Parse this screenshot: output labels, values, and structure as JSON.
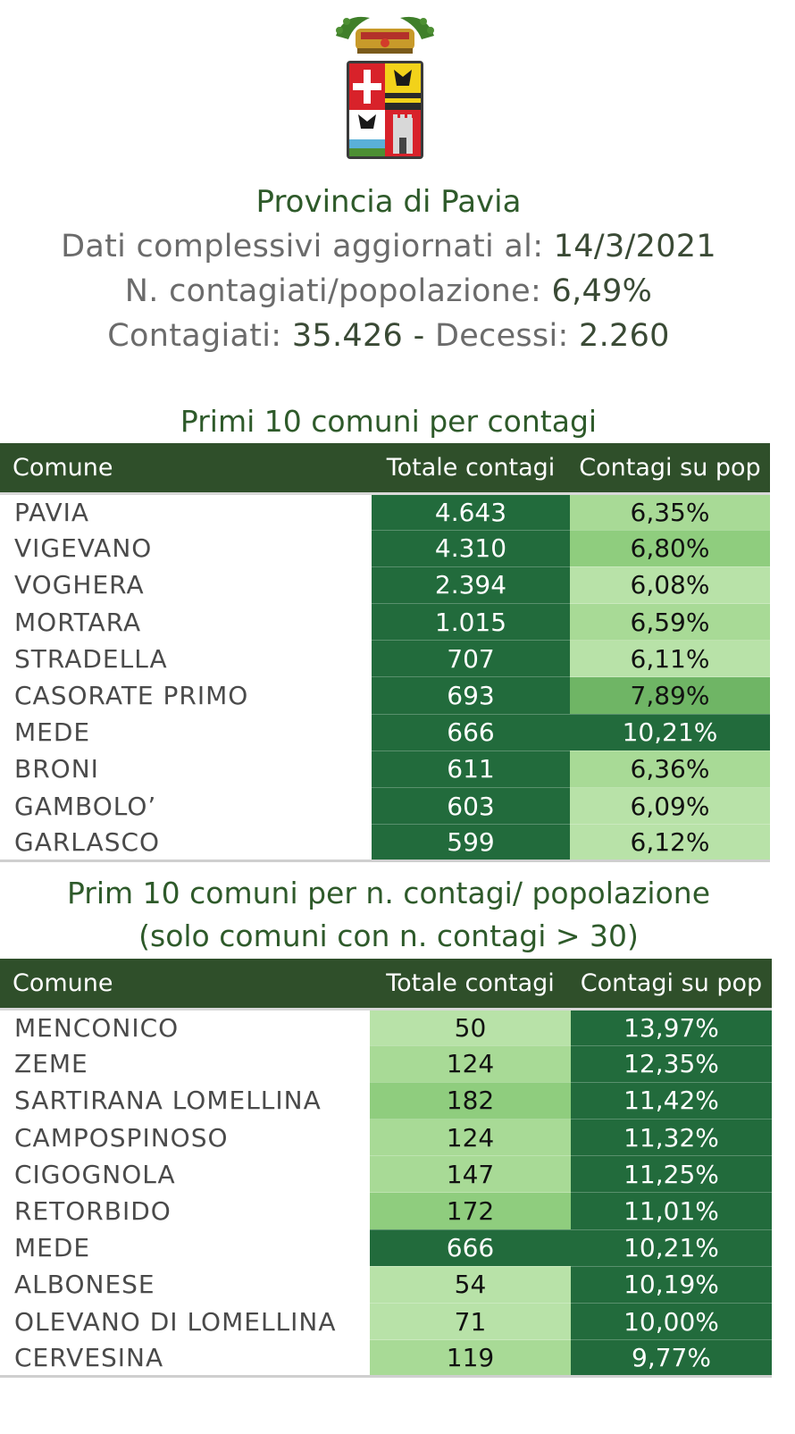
{
  "header": {
    "title": "Provincia di Pavia",
    "updated_label": "Dati complessivi aggiornati al:",
    "updated_value": "14/3/2021",
    "ratio_label": "N. contagiati/popolazione:",
    "ratio_value": "6,49%",
    "cases_label": "Contagiati:",
    "cases_value": "35.426",
    "separator": "-",
    "deaths_label": "Decessi:",
    "deaths_value": "2.260"
  },
  "table1": {
    "title": "Primi 10 comuni per contagi",
    "columns": [
      "Comune",
      "Totale contagi",
      "Contagi su pop"
    ],
    "rows": [
      {
        "comune": "PAVIA",
        "totale": "4.643",
        "pct": "6,35%",
        "shade": "light"
      },
      {
        "comune": "VIGEVANO",
        "totale": "4.310",
        "pct": "6,80%",
        "shade": "medium"
      },
      {
        "comune": "VOGHERA",
        "totale": "2.394",
        "pct": "6,08%",
        "shade": "pale"
      },
      {
        "comune": "MORTARA",
        "totale": "1.015",
        "pct": "6,59%",
        "shade": "light"
      },
      {
        "comune": "STRADELLA",
        "totale": "707",
        "pct": "6,11%",
        "shade": "pale"
      },
      {
        "comune": "CASORATE PRIMO",
        "totale": "693",
        "pct": "7,89%",
        "shade": "mid"
      },
      {
        "comune": "MEDE",
        "totale": "666",
        "pct": "10,21%",
        "shade": "dark"
      },
      {
        "comune": "BRONI",
        "totale": "611",
        "pct": "6,36%",
        "shade": "light"
      },
      {
        "comune": "GAMBOLO’",
        "totale": "603",
        "pct": "6,09%",
        "shade": "pale"
      },
      {
        "comune": "GARLASCO",
        "totale": "599",
        "pct": "6,12%",
        "shade": "pale"
      }
    ]
  },
  "table2": {
    "title_line1": "Prim 10 comuni per n. contagi/ popolazione",
    "title_line2": "(solo comuni con n. contagi > 30)",
    "columns": [
      "Comune",
      "Totale contagi",
      "Contagi su pop"
    ],
    "rows": [
      {
        "comune": "MENCONICO",
        "totale": "50",
        "pct": "13,97%",
        "shade": "pale"
      },
      {
        "comune": "ZEME",
        "totale": "124",
        "pct": "12,35%",
        "shade": "light"
      },
      {
        "comune": "SARTIRANA LOMELLINA",
        "totale": "182",
        "pct": "11,42%",
        "shade": "medium"
      },
      {
        "comune": "CAMPOSPINOSO",
        "totale": "124",
        "pct": "11,32%",
        "shade": "light"
      },
      {
        "comune": "CIGOGNOLA",
        "totale": "147",
        "pct": "11,25%",
        "shade": "light"
      },
      {
        "comune": "RETORBIDO",
        "totale": "172",
        "pct": "11,01%",
        "shade": "medium"
      },
      {
        "comune": "MEDE",
        "totale": "666",
        "pct": "10,21%",
        "shade": "dark"
      },
      {
        "comune": "ALBONESE",
        "totale": "54",
        "pct": "10,19%",
        "shade": "pale"
      },
      {
        "comune": "OLEVANO DI LOMELLINA",
        "totale": "71",
        "pct": "10,00%",
        "shade": "pale"
      },
      {
        "comune": "CERVESINA",
        "totale": "119",
        "pct": "9,77%",
        "shade": "light"
      }
    ]
  }
}
